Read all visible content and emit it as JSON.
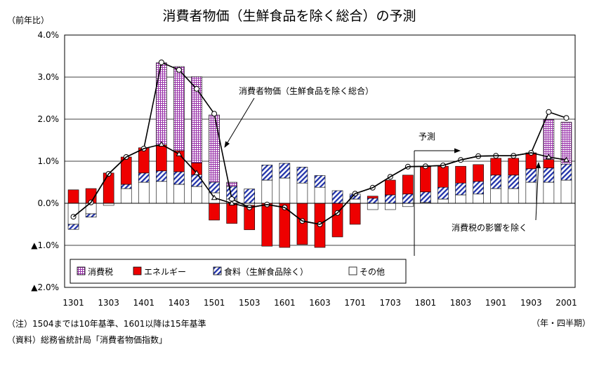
{
  "chart_data": {
    "type": "bar",
    "title": "消費者物価（生鮮食品を除く総合）の予測",
    "ylabel": "（前年比）",
    "xlabel": "（年・四半期）",
    "ylim": [
      -2.0,
      4.0
    ],
    "ytick_values": [
      -2.0,
      -1.0,
      0.0,
      1.0,
      2.0,
      3.0,
      4.0
    ],
    "ytick_labels": [
      "▲2.0%",
      "▲1.0%",
      "0.0%",
      "1.0%",
      "2.0%",
      "3.0%",
      "4.0%"
    ],
    "categories": [
      "1301",
      "1302",
      "1303",
      "1304",
      "1401",
      "1402",
      "1403",
      "1404",
      "1501",
      "1502",
      "1503",
      "1504",
      "1601",
      "1602",
      "1603",
      "1604",
      "1701",
      "1702",
      "1703",
      "1704",
      "1801",
      "1802",
      "1803",
      "1804",
      "1901",
      "1902",
      "1903",
      "1904",
      "2001"
    ],
    "xtick_labels": [
      "1301",
      "1303",
      "1401",
      "1403",
      "1501",
      "1503",
      "1601",
      "1603",
      "1701",
      "1703",
      "1801",
      "1803",
      "1901",
      "1903",
      "2001"
    ],
    "stacked": true,
    "series": [
      {
        "name": "消費税",
        "color": "#CC88DD",
        "values": [
          0,
          0,
          0,
          0,
          0,
          1.95,
          2.0,
          2.05,
          1.6,
          0.1,
          0,
          0,
          0,
          0,
          0,
          0,
          0,
          0,
          0,
          0,
          0,
          0,
          0,
          0,
          0,
          0,
          0,
          0.95,
          1.0
        ]
      },
      {
        "name": "エネルギー",
        "color": "#EE0000",
        "values": [
          0.32,
          0.35,
          0.72,
          0.65,
          0.6,
          0.62,
          0.5,
          0.28,
          -0.4,
          -0.48,
          -0.58,
          -1.02,
          -1.05,
          -0.98,
          -1.05,
          -0.8,
          -0.5,
          0.05,
          0.35,
          0.45,
          0.6,
          0.5,
          0.4,
          0.4,
          0.4,
          0.4,
          0.38,
          0.2,
          0.0
        ]
      },
      {
        "name": "食料（生鮮食品除く）",
        "color": "#3344BB",
        "values": [
          -0.12,
          -0.08,
          0,
          0.1,
          0.22,
          0.25,
          0.3,
          0.28,
          0.25,
          0.3,
          0.34,
          0.36,
          0.35,
          0.38,
          0.28,
          0.3,
          0.12,
          0.12,
          0.2,
          0.22,
          0.25,
          0.28,
          0.28,
          0.3,
          0.32,
          0.32,
          0.32,
          0.34,
          0.38
        ]
      },
      {
        "name": "その他",
        "color": "#FFFFFF",
        "values": [
          -0.5,
          -0.25,
          -0.05,
          0.35,
          0.5,
          0.52,
          0.45,
          0.4,
          0.25,
          0.1,
          -0.05,
          0.55,
          0.6,
          0.48,
          0.38,
          0.0,
          0.1,
          -0.15,
          -0.15,
          -0.08,
          0.02,
          0.1,
          0.2,
          0.22,
          0.35,
          0.35,
          0.5,
          0.5,
          0.55
        ]
      }
    ],
    "line_series": [
      {
        "name": "消費者物価（生鮮食品を除く総合）",
        "values": [
          -0.32,
          0.02,
          0.7,
          1.1,
          1.3,
          3.35,
          3.17,
          2.72,
          2.13,
          0.1,
          -0.1,
          -0.03,
          -0.1,
          -0.42,
          -0.5,
          -0.23,
          0.23,
          0.37,
          0.63,
          0.87,
          0.88,
          0.9,
          1.03,
          1.12,
          1.13,
          1.13,
          1.2,
          2.17,
          2.03
        ]
      },
      {
        "name": "消費税の影響を除く",
        "values": [
          -0.32,
          0.02,
          0.7,
          1.1,
          1.3,
          1.4,
          1.17,
          0.72,
          0.13,
          0,
          -0.1,
          -0.03,
          -0.1,
          -0.42,
          -0.5,
          -0.23,
          0.23,
          0.37,
          0.63,
          0.87,
          0.88,
          0.9,
          1.03,
          1.12,
          1.13,
          1.13,
          1.2,
          1.1,
          1.03
        ]
      }
    ],
    "annotations": {
      "cpi_label": "消費者物価（生鮮食品を除く総合）",
      "forecast_label": "予測",
      "ex_tax_label": "消費税の影響を除く"
    },
    "legend_position": "bottom-left"
  },
  "notes": {
    "base": "（注）1504までは10年基準、1601以降は15年基準",
    "source": "（資料）総務省統計局「消費者物価指数」"
  }
}
